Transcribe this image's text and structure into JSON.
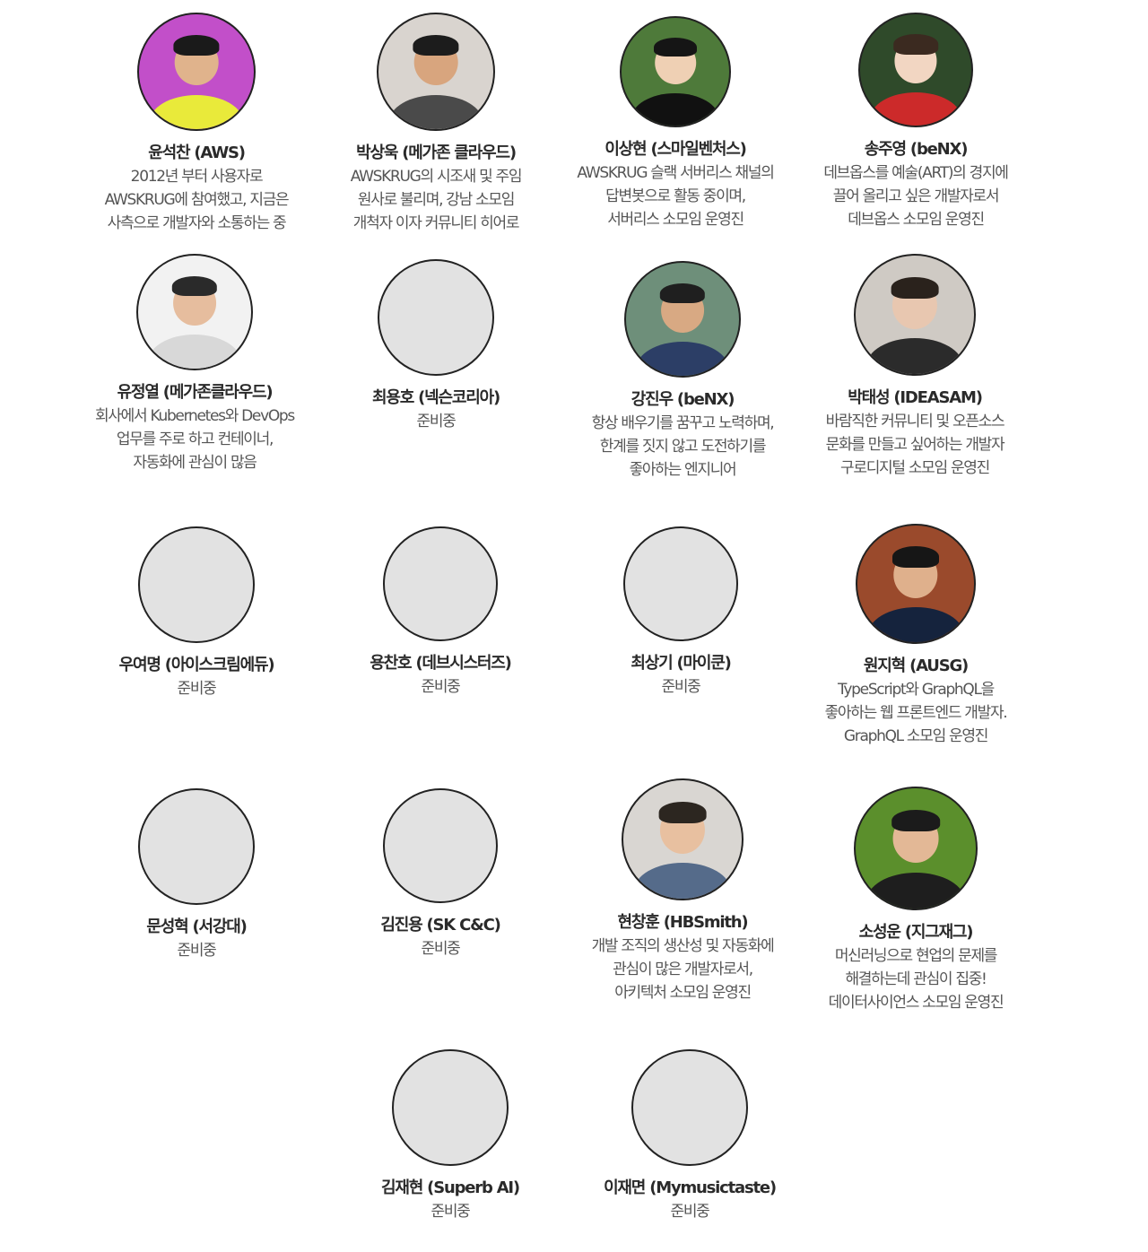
{
  "members": [
    {
      "name": "윤석찬 (AWS)",
      "lines": [
        "2012년 부터 사용자로",
        "AWSKRUG에 참여했고, 지금은",
        "사측으로 개발자와 소통하는 중"
      ],
      "avatar": "photo",
      "colors": {
        "bg": "#c24fc9",
        "skin": "#e0b38c",
        "hair": "#1a1a1a",
        "shirt": "#e9ea3a"
      }
    },
    {
      "name": "박상욱 (메가존 클라우드)",
      "lines": [
        "AWSKRUG의 시조새 및 주임",
        "원사로 불리며, 강남 소모임",
        "개척자 이자 커뮤니티 히어로"
      ],
      "avatar": "photo",
      "colors": {
        "bg": "#d9d4cf",
        "skin": "#d8a57e",
        "hair": "#1c1c1c",
        "shirt": "#4a4a4a"
      }
    },
    {
      "name": "이상현 (스마일벤처스)",
      "lines": [
        "AWSKRUG 슬랙 서버리스 채널의",
        "답변봇으로 활동 중이며,",
        "서버리스 소모임 운영진"
      ],
      "avatar": "photo",
      "colors": {
        "bg": "#4e7a3a",
        "skin": "#efd0b4",
        "hair": "#151515",
        "shirt": "#111111"
      }
    },
    {
      "name": "송주영 (beNX)",
      "lines": [
        "데브옵스를 예술(ART)의 경지에",
        "끌어 올리고 싶은 개발자로서",
        "데브옵스 소모임 운영진"
      ],
      "avatar": "photo",
      "colors": {
        "bg": "#2f4a2a",
        "skin": "#f2d6c2",
        "hair": "#3b2a20",
        "shirt": "#cc2a2a"
      }
    },
    {
      "name": "유정열 (메가존클라우드)",
      "lines": [
        "회사에서 Kubernetes와 DevOps",
        "업무를 주로 하고 컨테이너,",
        "자동화에 관심이 많음"
      ],
      "avatar": "photo",
      "colors": {
        "bg": "#f2f2f2",
        "skin": "#e6bd9e",
        "hair": "#2a2a2a",
        "shirt": "#d8d8d8"
      }
    },
    {
      "name": "최용호 (넥슨코리아)",
      "lines": [
        "준비중"
      ],
      "avatar": "placeholder"
    },
    {
      "name": "강진우 (beNX)",
      "lines": [
        "항상 배우기를 꿈꾸고 노력하며,",
        "한계를 짓지 않고 도전하기를",
        "좋아하는 엔지니어"
      ],
      "avatar": "photo",
      "colors": {
        "bg": "#6e8f7a",
        "skin": "#d8a983",
        "hair": "#1f1f1f",
        "shirt": "#2c3e66"
      }
    },
    {
      "name": "박태성 (IDEASAM)",
      "lines": [
        "바람직한 커뮤니티 및 오픈소스",
        "문화를 만들고 싶어하는 개발자",
        "구로디지털 소모임 운영진"
      ],
      "avatar": "photo",
      "colors": {
        "bg": "#cfcac4",
        "skin": "#e8c7b0",
        "hair": "#2a221c",
        "shirt": "#2b2b2b"
      }
    },
    {
      "name": "우여명 (아이스크림에듀)",
      "lines": [
        "준비중"
      ],
      "avatar": "placeholder"
    },
    {
      "name": "용찬호 (데브시스터즈)",
      "lines": [
        "준비중"
      ],
      "avatar": "placeholder"
    },
    {
      "name": "최상기 (마이쿤)",
      "lines": [
        "준비중"
      ],
      "avatar": "placeholder"
    },
    {
      "name": "원지혁 (AUSG)",
      "lines": [
        "TypeScript와 GraphQL을",
        "좋아하는 웹 프론트엔드 개발자.",
        "GraphQL 소모임 운영진"
      ],
      "avatar": "photo",
      "colors": {
        "bg": "#9a4a2c",
        "skin": "#dfb08c",
        "hair": "#161616",
        "shirt": "#15233d"
      }
    },
    {
      "name": "문성혁 (서강대)",
      "lines": [
        "준비중"
      ],
      "avatar": "placeholder"
    },
    {
      "name": "김진용 (SK C&C)",
      "lines": [
        "준비중"
      ],
      "avatar": "placeholder"
    },
    {
      "name": "현창훈 (HBSmith)",
      "lines": [
        "개발 조직의 생산성 및 자동화에",
        "관심이 많은 개발자로서,",
        "아키텍처 소모임 운영진"
      ],
      "avatar": "photo",
      "colors": {
        "bg": "#d9d6d2",
        "skin": "#e8c0a0",
        "hair": "#2c2620",
        "shirt": "#556b8a"
      }
    },
    {
      "name": "소성운 (지그재그)",
      "lines": [
        "머신러닝으로 현업의 문제를",
        "해결하는데 관심이 집중!",
        "데이터사이언스 소모임 운영진"
      ],
      "avatar": "photo",
      "colors": {
        "bg": "#5b8f2c",
        "skin": "#e3b896",
        "hair": "#1b1b1b",
        "shirt": "#1e1e1e"
      }
    },
    {
      "name": "김재현 (Superb AI)",
      "lines": [
        "준비중"
      ],
      "avatar": "placeholder"
    },
    {
      "name": "이재면 (Mymusictaste)",
      "lines": [
        "준비중"
      ],
      "avatar": "placeholder"
    }
  ]
}
